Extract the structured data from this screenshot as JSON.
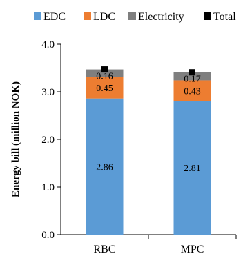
{
  "chart_data": {
    "type": "bar",
    "stacked": true,
    "title": "",
    "xlabel": "",
    "ylabel": "Energy bill (million NOK)",
    "ylim": [
      0,
      4
    ],
    "yticks": [
      "0.0",
      "1.0",
      "2.0",
      "3.0",
      "4.0"
    ],
    "grid": false,
    "legend_position": "top",
    "categories": [
      "RBC",
      "MPC"
    ],
    "series": [
      {
        "name": "EDC",
        "color": "#5b9bd5",
        "values": [
          2.86,
          2.81
        ],
        "labels": [
          "2.86",
          "2.81"
        ]
      },
      {
        "name": "LDC",
        "color": "#ed7d31",
        "values": [
          0.45,
          0.43
        ],
        "labels": [
          "0.45",
          "0.43"
        ]
      },
      {
        "name": "Electricity",
        "color": "#7f7f7f",
        "values": [
          0.16,
          0.17
        ],
        "labels": [
          "0.16",
          "0.17"
        ]
      }
    ],
    "total": {
      "name": "Total",
      "color": "#000000",
      "marker": "square",
      "values": [
        3.47,
        3.41
      ]
    }
  }
}
